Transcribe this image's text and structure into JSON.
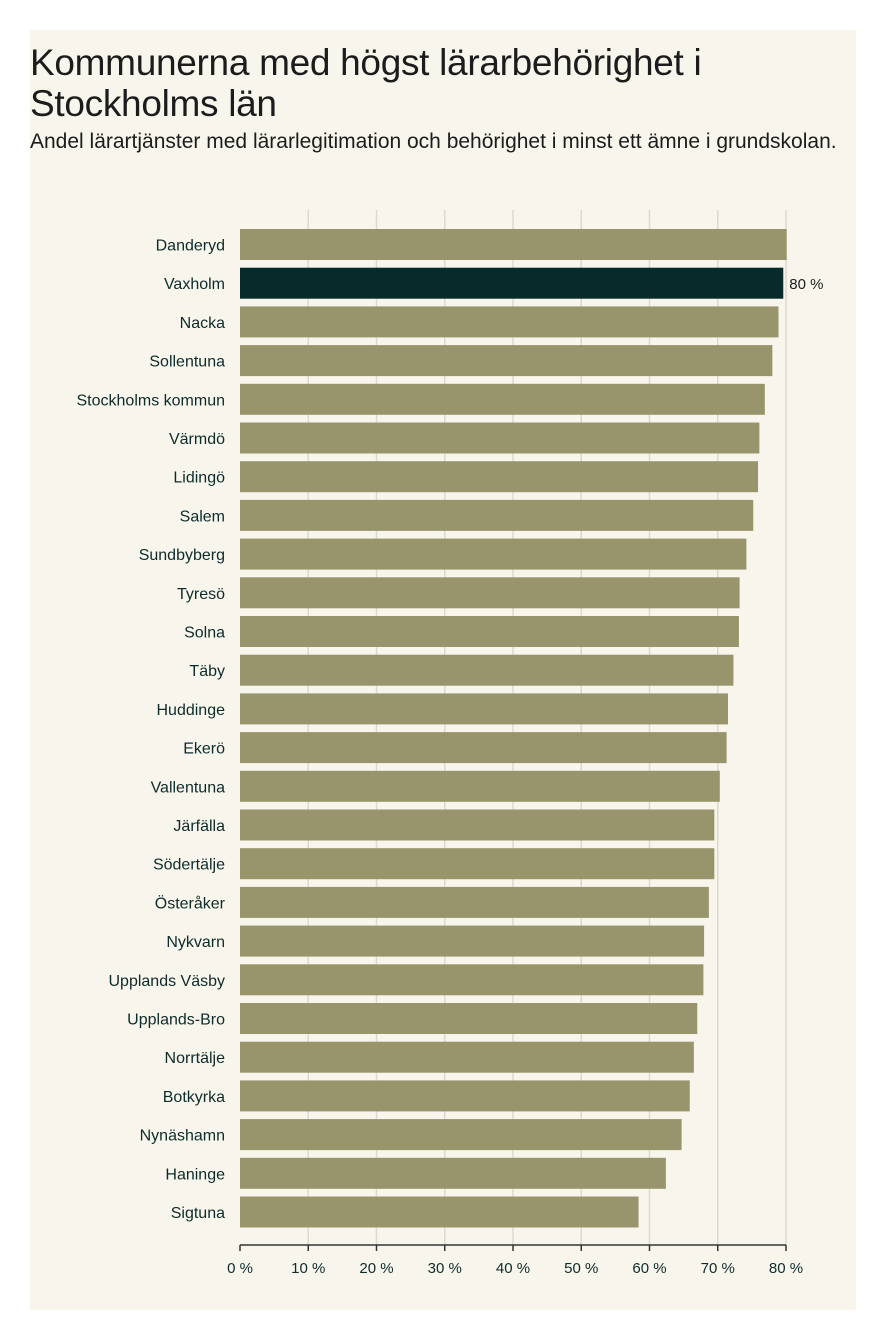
{
  "chart_data": {
    "type": "bar",
    "orientation": "horizontal",
    "title": "Kommunerna med högst lärarbehörighet i Stockholms län",
    "subtitle": "Andel lärartjänster med lärarlegitimation och behörighet i minst ett ämne i grundskolan.",
    "xlabel": "",
    "ylabel": "",
    "xlim": [
      0,
      80
    ],
    "grid": true,
    "categories": [
      "Danderyd",
      "Vaxholm",
      "Nacka",
      "Sollentuna",
      "Stockholms kommun",
      "Värmdö",
      "Lidingö",
      "Salem",
      "Sundbyberg",
      "Tyresö",
      "Solna",
      "Täby",
      "Huddinge",
      "Ekerö",
      "Vallentuna",
      "Järfälla",
      "Södertälje",
      "Österåker",
      "Nykvarn",
      "Upplands Väsby",
      "Upplands-Bro",
      "Norrtälje",
      "Botkyrka",
      "Nynäshamn",
      "Haninge",
      "Sigtuna"
    ],
    "values": [
      80.1,
      79.6,
      78.9,
      78.0,
      76.9,
      76.1,
      75.9,
      75.2,
      74.2,
      73.2,
      73.1,
      72.3,
      71.5,
      71.3,
      70.3,
      69.5,
      69.5,
      68.7,
      68.0,
      67.9,
      67.0,
      66.5,
      65.9,
      64.7,
      62.4,
      58.4
    ],
    "highlight": "Vaxholm",
    "highlight_label": "80 %",
    "ticks": [
      0,
      10,
      20,
      30,
      40,
      50,
      60,
      70,
      80
    ],
    "tick_labels": [
      "0 %",
      "10 %",
      "20 %",
      "30 %",
      "40 %",
      "50 %",
      "60 %",
      "70 %",
      "80 %"
    ],
    "colors": {
      "bar": "#98956c",
      "highlight": "#072b2b",
      "grid": "#dcdad0",
      "axis": "#333333",
      "background": "#f8f6ec"
    }
  }
}
